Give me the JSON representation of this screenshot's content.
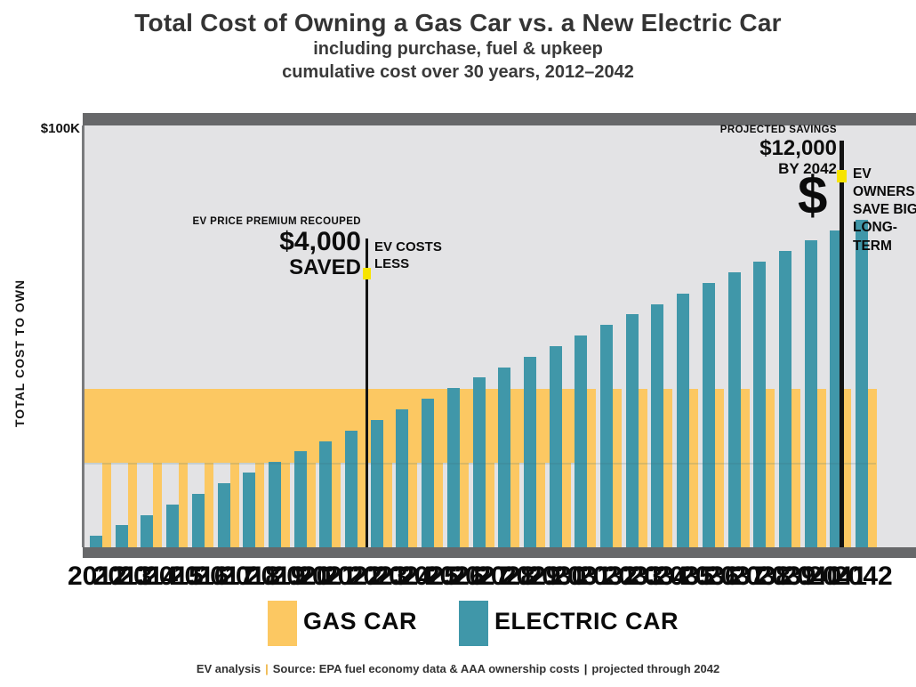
{
  "title": {
    "line1": "Total Cost of Owning a Gas Car vs. a New Electric Car",
    "line2": "including purchase, fuel & upkeep",
    "line3": "cumulative cost over 30 years, 2012–2042"
  },
  "y_axis": {
    "top_tick": "$100K",
    "title": "TOTAL COST TO OWN"
  },
  "annotations": {
    "breakeven": {
      "heading": "EV PRICE PREMIUM RECOUPED",
      "value": "$4,000",
      "sub": "SAVED",
      "side1": "EV COSTS",
      "side2": "LESS",
      "marker_year": 2023,
      "marker_value": 65000
    },
    "projected": {
      "heading": "PROJECTED SAVINGS",
      "value": "$12,000",
      "sub": "BY 2042",
      "big": "$",
      "side1": "EV OWNERS",
      "side2": "SAVE BIG",
      "side3": "LONG-TERM",
      "marker_year": 2041,
      "marker_value": 88000
    }
  },
  "legend": [
    {
      "label": "GAS CAR",
      "color": "#FCC862"
    },
    {
      "label": "ELECTRIC CAR",
      "color": "#4097A9"
    }
  ],
  "source": {
    "seg1": "EV analysis",
    "seg2": "Source: EPA fuel economy data & AAA ownership costs",
    "seg3": "projected through 2042"
  },
  "chart_data": {
    "type": "bar",
    "title": "Total Cost of Owning a Gas Car vs. a New Electric Car",
    "x": [
      "2012",
      "2013",
      "2014",
      "2015",
      "2016",
      "2017",
      "2018",
      "2019",
      "2020",
      "2021",
      "2022",
      "2023",
      "2024",
      "2025",
      "2026",
      "2027",
      "2028",
      "2029",
      "2030",
      "2031",
      "2032",
      "2033",
      "2034",
      "2035",
      "2036",
      "2037",
      "2038",
      "2039",
      "2040",
      "2041",
      "2042"
    ],
    "series": [
      {
        "name": "GAS CAR",
        "color": "#FCC862",
        "constant_value": 37500
      },
      {
        "name": "ELECTRIC CAR",
        "color": "#4097A9",
        "values": [
          2700,
          5200,
          7700,
          10200,
          12700,
          15200,
          17700,
          20200,
          22700,
          25200,
          27700,
          30200,
          32700,
          35200,
          37700,
          40200,
          42700,
          45200,
          47700,
          50200,
          52700,
          55200,
          57700,
          60200,
          62700,
          65200,
          67700,
          70200,
          72700,
          75200,
          77700
        ]
      }
    ],
    "ylabel": "TOTAL COST TO OWN",
    "ylim": [
      0,
      100000
    ],
    "ytick_labels": [
      "$100K"
    ],
    "grid": false,
    "legend_position": "bottom",
    "band": {
      "x_from": "2012",
      "x_to": "2031",
      "y_from": 20000,
      "y_to": 37500,
      "color": "#FCC862"
    }
  }
}
